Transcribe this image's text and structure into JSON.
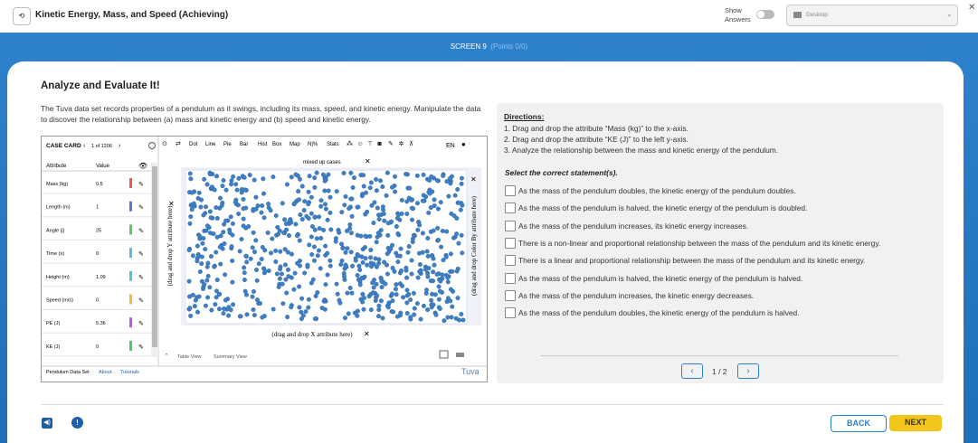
{
  "header": {
    "title": "Kinetic Energy, Mass, and Speed (Achieving)",
    "show_answers": "Show Answers",
    "device": "Desktop"
  },
  "banner": {
    "screen": "SCREEN 9",
    "points": "(Points 0/0)"
  },
  "activity": {
    "title": "Analyze and Evaluate It!",
    "intro": "The Tuva data set records properties of a pendulum as it swings, including its mass, speed, and kinetic energy. Manipulate the data to discover the relationship between (a) mass and kinetic energy and (b) speed and kinetic energy."
  },
  "tuva": {
    "case_card": "CASE CARD",
    "case_count": "1 of 1206",
    "tools": [
      "Dot",
      "Line",
      "Pie",
      "Bar",
      "Hist",
      "Box",
      "Map",
      "N|%",
      "Stats"
    ],
    "language": "EN",
    "columns": [
      "Attribute",
      "Value"
    ],
    "rows": [
      [
        "Mass (kg)",
        0.5
      ],
      [
        "Length (m)",
        1
      ],
      [
        "Angle (j)",
        25
      ],
      [
        "Time (s)",
        0
      ],
      [
        "Height (m)",
        1.09
      ],
      [
        "Speed (m/s)",
        0
      ],
      [
        "PE (J)",
        5.36
      ],
      [
        "KE (J)",
        0
      ]
    ],
    "plot_title": "mixed up cases",
    "y_drop": "(drag and drop Y attribute here)",
    "x_drop": "(drag and drop X attribute here)",
    "color_drop": "(drag and drop Color By attribute here)",
    "views": [
      "Table View",
      "Summary View"
    ],
    "footer_links": [
      "Pendulum Data Set",
      "About",
      "Tutorials"
    ],
    "brand": "Tuva"
  },
  "question": {
    "directions_label": "Directions:",
    "directions": [
      "1. Drag and drop the attribute “Mass (kg)” to the x-axis.",
      "2. Drag and drop the attribute “KE (J)” to the left y-axis.",
      "3. Analyze the relationship between the mass and kinetic energy of the pendulum."
    ],
    "prompt": "Select the correct statement(s).",
    "options": [
      "As the mass of the pendulum doubles, the kinetic energy of the pendulum doubles.",
      "As the mass of the pendulum is halved, the kinetic energy of the pendulum is doubled.",
      "As the mass of the pendulum increases, its kinetic energy increases.",
      "There is a non-linear and proportional relationship between the mass of the pendulum and its kinetic energy.",
      "There is a linear and proportional relationship between the mass of the pendulum and its kinetic energy.",
      "As the mass of the pendulum is halved, the kinetic energy of the pendulum is halved.",
      "As the mass of the pendulum increases, the kinetic energy decreases.",
      "As the mass of the pendulum doubles, the kinetic energy of the pendulum is halved."
    ],
    "page": "1 / 2"
  },
  "navigation": {
    "back": "BACK",
    "next": "NEXT"
  }
}
